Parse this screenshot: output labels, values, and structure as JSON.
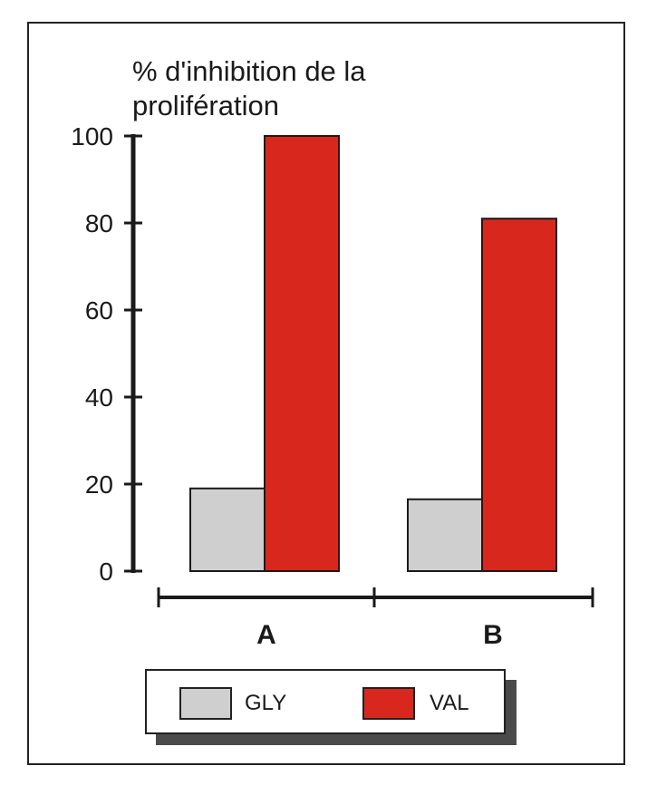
{
  "chart_data": {
    "type": "bar",
    "ylabel": "% d'inhibition de la prolifération",
    "categories": [
      "A",
      "B"
    ],
    "yticks": [
      "0",
      "20",
      "40",
      "60",
      "80",
      "100"
    ],
    "ylim": [
      0,
      100
    ],
    "legend_position": "bottom",
    "grid": false,
    "series": [
      {
        "name": "GLY",
        "color": "#cfcfcf",
        "values": [
          19,
          16.5
        ]
      },
      {
        "name": "VAL",
        "color": "#d8281e",
        "values": [
          100,
          81
        ]
      }
    ]
  }
}
